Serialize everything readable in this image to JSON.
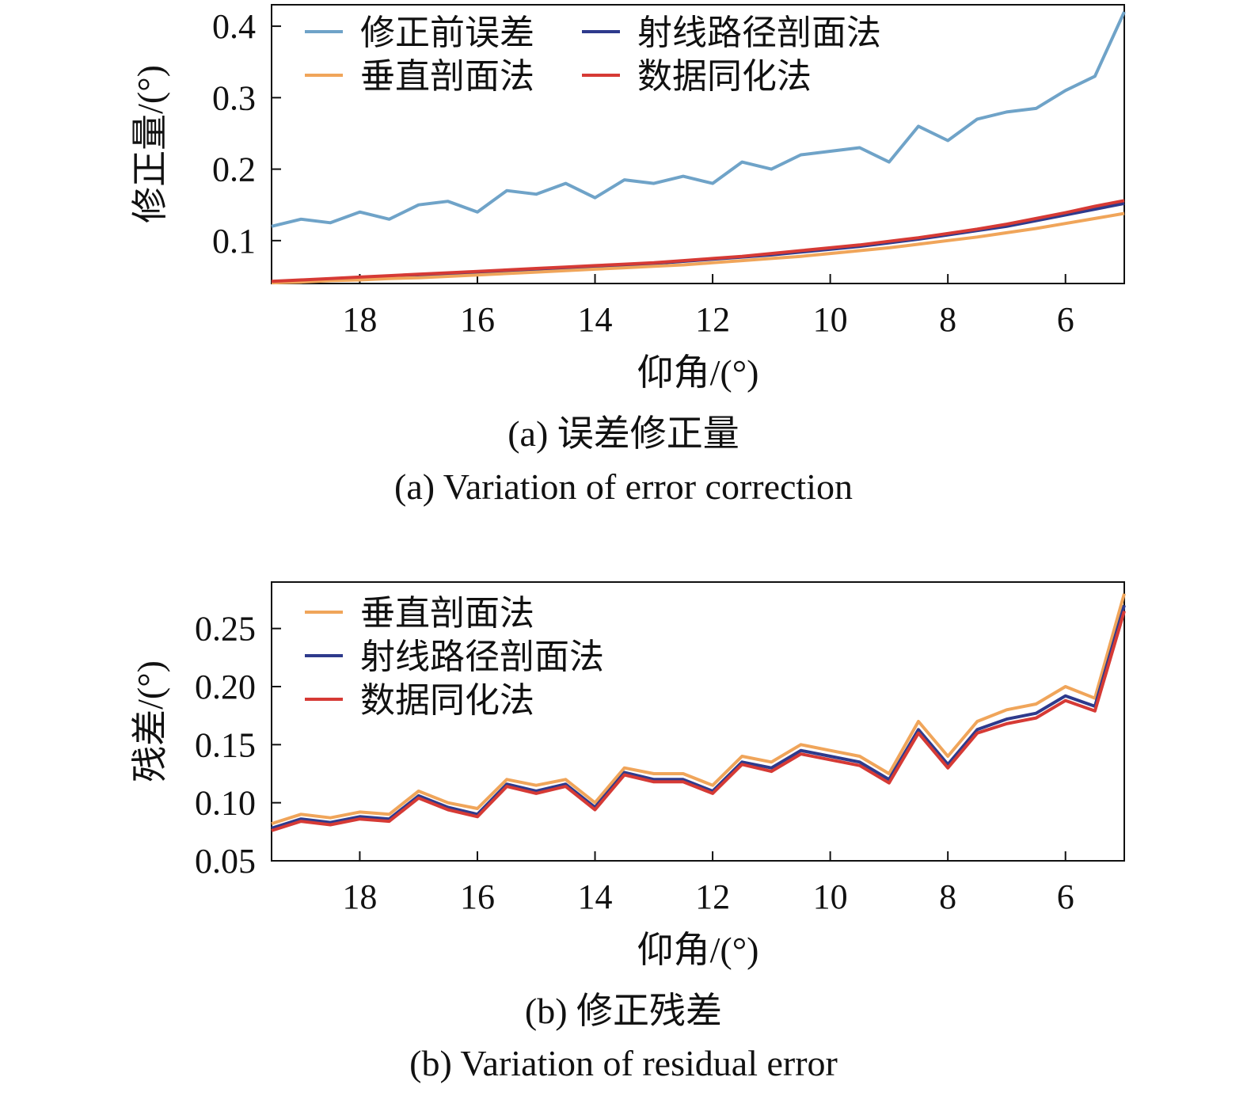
{
  "chart_data": [
    {
      "type": "line",
      "caption_cn": "(a) 误差修正量",
      "caption_en": "(a) Variation of error correction",
      "xlabel": "仰角/(°)",
      "ylabel": "修正量/(°)",
      "xlim": [
        19.5,
        5.0
      ],
      "ylim": [
        0.04,
        0.43
      ],
      "xticks": [
        18,
        16,
        14,
        12,
        10,
        8,
        6
      ],
      "yticks": [
        0.1,
        0.2,
        0.3,
        0.4
      ],
      "ytick_labels": [
        "0.1",
        "0.2",
        "0.3",
        "0.4"
      ],
      "x_reversed": true,
      "grid": false,
      "legend_position": "top-left",
      "legend_columns": 2,
      "x": [
        19.5,
        19.0,
        18.5,
        18.0,
        17.5,
        17.0,
        16.5,
        16.0,
        15.5,
        15.0,
        14.5,
        14.0,
        13.5,
        13.0,
        12.5,
        12.0,
        11.5,
        11.0,
        10.5,
        10.0,
        9.5,
        9.0,
        8.5,
        8.0,
        7.5,
        7.0,
        6.5,
        6.0,
        5.5,
        5.0
      ],
      "series": [
        {
          "name": "修正前误差",
          "color": "#6fa3c8",
          "values": [
            0.12,
            0.13,
            0.125,
            0.14,
            0.13,
            0.15,
            0.155,
            0.14,
            0.17,
            0.165,
            0.18,
            0.16,
            0.185,
            0.18,
            0.19,
            0.18,
            0.21,
            0.2,
            0.22,
            0.225,
            0.23,
            0.21,
            0.26,
            0.24,
            0.27,
            0.28,
            0.285,
            0.31,
            0.33,
            0.42
          ]
        },
        {
          "name": "射线路径剖面法",
          "color": "#2e3a8c",
          "values": [
            0.042,
            0.044,
            0.046,
            0.048,
            0.05,
            0.052,
            0.054,
            0.056,
            0.058,
            0.06,
            0.062,
            0.064,
            0.066,
            0.068,
            0.071,
            0.074,
            0.077,
            0.08,
            0.084,
            0.088,
            0.092,
            0.097,
            0.102,
            0.108,
            0.114,
            0.12,
            0.128,
            0.136,
            0.144,
            0.152
          ]
        },
        {
          "name": "垂直剖面法",
          "color": "#f0a55a",
          "values": [
            0.041,
            0.042,
            0.044,
            0.045,
            0.047,
            0.048,
            0.05,
            0.052,
            0.054,
            0.056,
            0.058,
            0.06,
            0.062,
            0.064,
            0.066,
            0.069,
            0.072,
            0.075,
            0.078,
            0.082,
            0.086,
            0.09,
            0.095,
            0.1,
            0.105,
            0.111,
            0.117,
            0.124,
            0.131,
            0.138
          ]
        },
        {
          "name": "数据同化法",
          "color": "#d63a35",
          "values": [
            0.043,
            0.045,
            0.047,
            0.049,
            0.051,
            0.053,
            0.055,
            0.057,
            0.059,
            0.061,
            0.063,
            0.065,
            0.067,
            0.069,
            0.072,
            0.075,
            0.078,
            0.082,
            0.086,
            0.09,
            0.094,
            0.099,
            0.104,
            0.11,
            0.116,
            0.123,
            0.131,
            0.139,
            0.148,
            0.156
          ]
        }
      ],
      "legend_order": [
        "修正前误差",
        "射线路径剖面法",
        "垂直剖面法",
        "数据同化法"
      ]
    },
    {
      "type": "line",
      "caption_cn": "(b) 修正残差",
      "caption_en": "(b) Variation of residual error",
      "xlabel": "仰角/(°)",
      "ylabel": "残差/(°)",
      "xlim": [
        19.5,
        5.0
      ],
      "ylim": [
        0.05,
        0.29
      ],
      "xticks": [
        18,
        16,
        14,
        12,
        10,
        8,
        6
      ],
      "yticks": [
        0.05,
        0.1,
        0.15,
        0.2,
        0.25
      ],
      "ytick_labels": [
        "0.05",
        "0.10",
        "0.15",
        "0.20",
        "0.25"
      ],
      "x_reversed": true,
      "grid": false,
      "legend_position": "top-left",
      "legend_columns": 1,
      "x": [
        19.5,
        19.0,
        18.5,
        18.0,
        17.5,
        17.0,
        16.5,
        16.0,
        15.5,
        15.0,
        14.5,
        14.0,
        13.5,
        13.0,
        12.5,
        12.0,
        11.5,
        11.0,
        10.5,
        10.0,
        9.5,
        9.0,
        8.5,
        8.0,
        7.5,
        7.0,
        6.5,
        6.0,
        5.5,
        5.0
      ],
      "series": [
        {
          "name": "垂直剖面法",
          "color": "#f0a55a",
          "values": [
            0.082,
            0.09,
            0.087,
            0.092,
            0.09,
            0.11,
            0.1,
            0.095,
            0.12,
            0.115,
            0.12,
            0.1,
            0.13,
            0.125,
            0.125,
            0.115,
            0.14,
            0.135,
            0.15,
            0.145,
            0.14,
            0.125,
            0.17,
            0.14,
            0.17,
            0.18,
            0.185,
            0.2,
            0.19,
            0.28
          ]
        },
        {
          "name": "射线路径剖面法",
          "color": "#2e3a8c",
          "values": [
            0.078,
            0.086,
            0.083,
            0.088,
            0.086,
            0.106,
            0.096,
            0.09,
            0.116,
            0.11,
            0.116,
            0.096,
            0.126,
            0.12,
            0.12,
            0.11,
            0.135,
            0.13,
            0.145,
            0.14,
            0.135,
            0.12,
            0.163,
            0.133,
            0.163,
            0.172,
            0.177,
            0.192,
            0.183,
            0.27
          ]
        },
        {
          "name": "数据同化法",
          "color": "#d63a35",
          "values": [
            0.076,
            0.084,
            0.081,
            0.086,
            0.084,
            0.104,
            0.094,
            0.088,
            0.114,
            0.108,
            0.114,
            0.094,
            0.124,
            0.118,
            0.118,
            0.108,
            0.133,
            0.127,
            0.142,
            0.137,
            0.132,
            0.117,
            0.16,
            0.13,
            0.16,
            0.168,
            0.173,
            0.188,
            0.179,
            0.265
          ]
        }
      ],
      "legend_order": [
        "垂直剖面法",
        "射线路径剖面法",
        "数据同化法"
      ]
    }
  ]
}
